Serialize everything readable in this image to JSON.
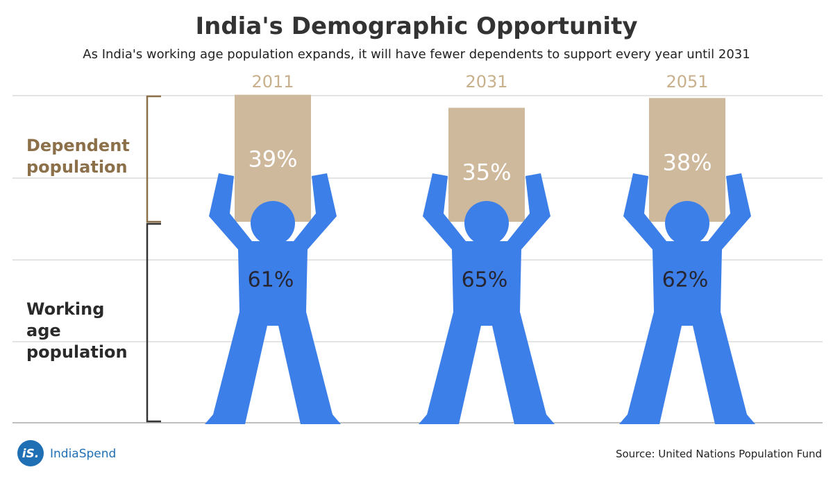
{
  "chart_data": {
    "type": "pictogram",
    "title": "India's Demographic Opportunity",
    "subtitle": "As India's working age population expands, it will have fewer dependents to support every year until 2031",
    "categories": [
      "2011",
      "2031",
      "2051"
    ],
    "series": [
      {
        "name": "Dependent population",
        "color": "#cfb99c",
        "values": [
          39,
          35,
          38
        ],
        "value_labels": [
          "39%",
          "35%",
          "38%"
        ]
      },
      {
        "name": "Working age population",
        "color": "#3d7fe8",
        "values": [
          61,
          65,
          62
        ],
        "value_labels": [
          "61%",
          "65%",
          "62%"
        ]
      }
    ],
    "source": "Source: United Nations Population Fund"
  },
  "brand": {
    "logo": "iS.",
    "name": "IndiaSpend"
  }
}
